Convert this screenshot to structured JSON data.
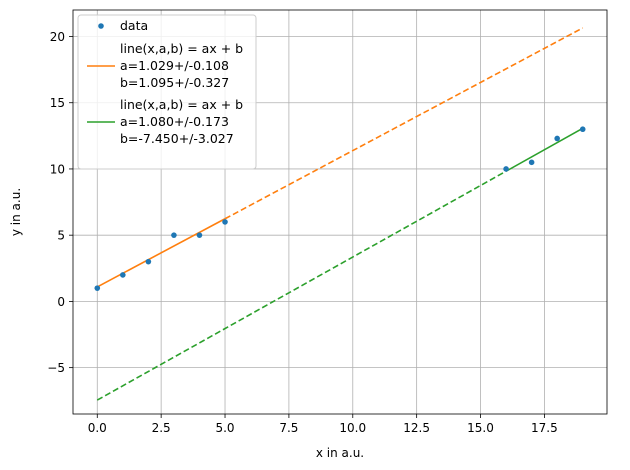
{
  "chart_data": {
    "type": "scatter",
    "xlabel": "x in a.u.",
    "ylabel": "y in a.u.",
    "xlim": [
      -0.95,
      19.95
    ],
    "ylim": [
      -8.5,
      22.0
    ],
    "x_ticks": [
      0.0,
      2.5,
      5.0,
      7.5,
      10.0,
      12.5,
      15.0,
      17.5
    ],
    "x_tick_labels": [
      "0.0",
      "2.5",
      "5.0",
      "7.5",
      "10.0",
      "12.5",
      "15.0",
      "17.5"
    ],
    "y_ticks": [
      -5,
      0,
      5,
      10,
      15,
      20
    ],
    "y_tick_labels": [
      "−5",
      "0",
      "5",
      "10",
      "15",
      "20"
    ],
    "grid": true,
    "legend_position": "top-left",
    "series": [
      {
        "name": "data",
        "kind": "points",
        "color": "#1f77b4",
        "x": [
          0,
          1,
          2,
          3,
          4,
          5,
          16,
          17,
          18,
          19
        ],
        "y": [
          1,
          2,
          3,
          5,
          5,
          6,
          10,
          10.5,
          12.3,
          13
        ]
      },
      {
        "name": "line(x,a,b) = ax + b",
        "legend_lines": [
          "line(x,a,b) = ax + b",
          "a=1.029+/-0.108",
          "b=1.095+/-0.327"
        ],
        "kind": "fit",
        "color": "#ff7f0e",
        "a": 1.029,
        "b": 1.095,
        "solid_x": [
          0,
          5
        ],
        "dashed_x": [
          5,
          19
        ]
      },
      {
        "name": "line(x,a,b) = ax + b",
        "legend_lines": [
          "line(x,a,b) = ax + b",
          "a=1.080+/-0.173",
          "b=-7.450+/-3.027"
        ],
        "kind": "fit",
        "color": "#2ca02c",
        "a": 1.08,
        "b": -7.45,
        "solid_x": [
          16,
          19
        ],
        "dashed_x": [
          0,
          16
        ]
      }
    ]
  }
}
